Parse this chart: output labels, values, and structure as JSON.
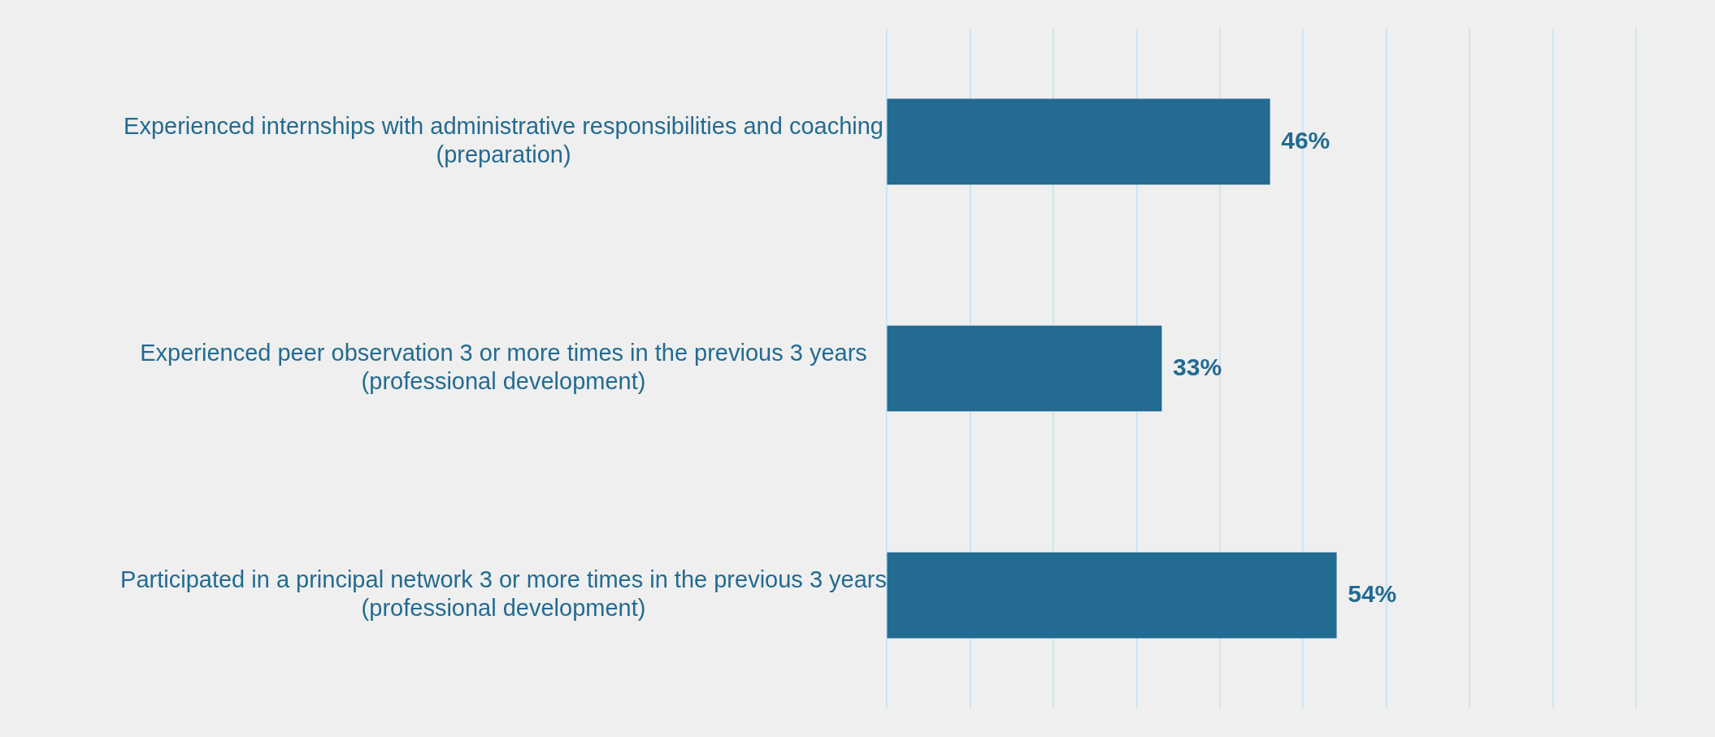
{
  "chart_data": {
    "type": "bar",
    "orientation": "horizontal",
    "categories": [
      "Experienced internships with administrative responsibilities and coaching\n(preparation)",
      "Experienced peer observation 3 or more times in the previous 3 years\n(professional development)",
      "Participated in a principal network 3 or more times in the previous 3 years\n(professional development)"
    ],
    "values": [
      46,
      33,
      54
    ],
    "value_labels": [
      "46%",
      "33%",
      "54%"
    ],
    "color": "#236b91",
    "xlim": [
      0,
      90
    ],
    "xticks": [
      {
        "value": 0,
        "label": null
      },
      {
        "value": 10,
        "label": null
      },
      {
        "value": 20,
        "label": null
      },
      {
        "value": 30,
        "label": null
      },
      {
        "value": 40,
        "label": null
      },
      {
        "value": 50,
        "label": null
      },
      {
        "value": 60,
        "label": null
      },
      {
        "value": 70,
        "label": null
      },
      {
        "value": 80,
        "label": null
      },
      {
        "value": 90,
        "label": null
      }
    ],
    "grid": "x",
    "tick_labels": "y"
  }
}
